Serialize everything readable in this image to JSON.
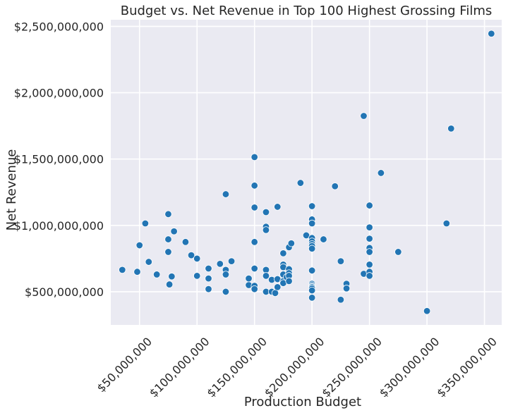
{
  "chart_data": {
    "type": "scatter",
    "title": "Budget vs. Net Revenue in Top 100 Highest Grossing Films",
    "xlabel": "Production Budget",
    "ylabel": "Net Revenue",
    "xlim": [
      25000000,
      365000000
    ],
    "ylim": [
      250000000,
      2550000000
    ],
    "xticks": [
      50000000,
      100000000,
      150000000,
      200000000,
      250000000,
      300000000,
      350000000
    ],
    "xtick_labels": [
      "$50,000,000",
      "$100,000,000",
      "$150,000,000",
      "$200,000,000",
      "$250,000,000",
      "$300,000,000",
      "$350,000,000"
    ],
    "yticks": [
      500000000,
      1000000000,
      1500000000,
      2000000000,
      2500000000
    ],
    "ytick_labels": [
      "$500,000,000",
      "$1,000,000,000",
      "$1,500,000,000",
      "$2,000,000,000",
      "$2,500,000,000"
    ],
    "grid": true,
    "marker_color": "#2275b4",
    "background": "#eaeaf2",
    "x": [
      35000000,
      48000000,
      50000000,
      55000000,
      58000000,
      65000000,
      75000000,
      75000000,
      75000000,
      76000000,
      78000000,
      80000000,
      90000000,
      95000000,
      100000000,
      100000000,
      110000000,
      110000000,
      110000000,
      120000000,
      125000000,
      125000000,
      125000000,
      125000000,
      130000000,
      145000000,
      145000000,
      150000000,
      150000000,
      150000000,
      150000000,
      150000000,
      150000000,
      150000000,
      160000000,
      160000000,
      160000000,
      160000000,
      160000000,
      160000000,
      165000000,
      165000000,
      168000000,
      170000000,
      170000000,
      170000000,
      175000000,
      175000000,
      175000000,
      175000000,
      175000000,
      175000000,
      178000000,
      180000000,
      180000000,
      180000000,
      180000000,
      180000000,
      182000000,
      190000000,
      195000000,
      200000000,
      200000000,
      200000000,
      200000000,
      200000000,
      200000000,
      200000000,
      200000000,
      200000000,
      200000000,
      200000000,
      200000000,
      200000000,
      200000000,
      200000000,
      200000000,
      210000000,
      220000000,
      225000000,
      225000000,
      230000000,
      230000000,
      245000000,
      245000000,
      250000000,
      250000000,
      250000000,
      250000000,
      250000000,
      250000000,
      250000000,
      250000000,
      260000000,
      275000000,
      300000000,
      317000000,
      321000000,
      356000000
    ],
    "y": [
      665000000,
      650000000,
      850000000,
      1015000000,
      725000000,
      630000000,
      1085000000,
      895000000,
      800000000,
      555000000,
      615000000,
      955000000,
      875000000,
      775000000,
      750000000,
      620000000,
      600000000,
      675000000,
      520000000,
      710000000,
      1235000000,
      665000000,
      630000000,
      500000000,
      730000000,
      550000000,
      600000000,
      1515000000,
      1300000000,
      1135000000,
      875000000,
      675000000,
      545000000,
      520000000,
      1100000000,
      990000000,
      965000000,
      665000000,
      620000000,
      500000000,
      590000000,
      500000000,
      490000000,
      1140000000,
      595000000,
      535000000,
      790000000,
      705000000,
      685000000,
      630000000,
      580000000,
      565000000,
      610000000,
      835000000,
      670000000,
      640000000,
      620000000,
      580000000,
      865000000,
      1320000000,
      925000000,
      1145000000,
      1045000000,
      1015000000,
      905000000,
      880000000,
      860000000,
      845000000,
      825000000,
      660000000,
      560000000,
      550000000,
      540000000,
      535000000,
      525000000,
      510000000,
      455000000,
      895000000,
      1295000000,
      730000000,
      440000000,
      560000000,
      525000000,
      1825000000,
      635000000,
      1150000000,
      985000000,
      900000000,
      830000000,
      800000000,
      705000000,
      650000000,
      620000000,
      1395000000,
      800000000,
      355000000,
      1015000000,
      1730000000,
      2445000000
    ]
  }
}
